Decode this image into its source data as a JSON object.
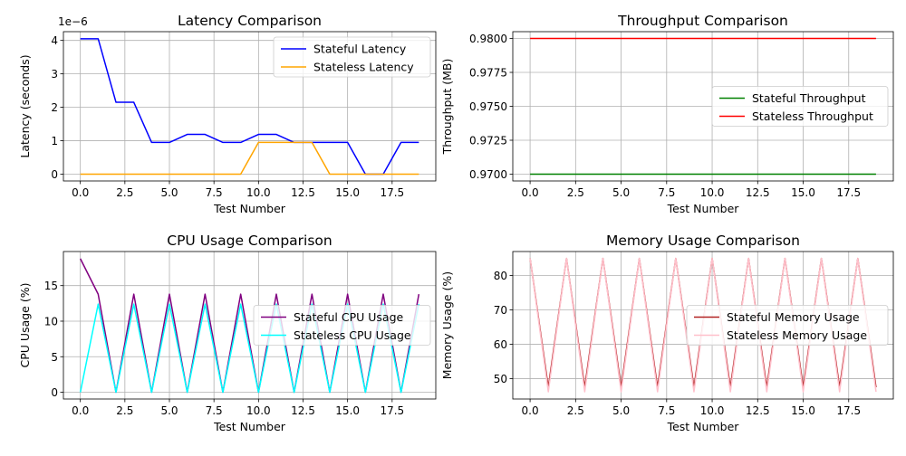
{
  "chart_data": [
    {
      "type": "line",
      "title": "Latency Comparison",
      "xlabel": "Test Number",
      "ylabel": "Latency (seconds)",
      "offset_text": "1e−6",
      "xlim": [
        -0.95,
        19.95
      ],
      "ylim": [
        -2.03e-07,
        4.262e-06
      ],
      "xticks": [
        0,
        2.5,
        5,
        7.5,
        10,
        12.5,
        15,
        17.5
      ],
      "xtick_labels": [
        "0.0",
        "2.5",
        "5.0",
        "7.5",
        "10.0",
        "12.5",
        "15.0",
        "17.5"
      ],
      "yticks": [
        0,
        1e-06,
        2e-06,
        3e-06,
        4e-06
      ],
      "ytick_labels": [
        "0",
        "1",
        "2",
        "3",
        "4"
      ],
      "grid": true,
      "legend": {
        "placement": "top-right"
      },
      "x": [
        0,
        1,
        2,
        3,
        4,
        5,
        6,
        7,
        8,
        9,
        10,
        11,
        12,
        13,
        14,
        15,
        16,
        17,
        18,
        19
      ],
      "series": [
        {
          "name": "Stateful Latency",
          "color": "#0000ff",
          "values": [
            4.05e-06,
            4.05e-06,
            2.15e-06,
            2.15e-06,
            9.5e-07,
            9.5e-07,
            1.19e-06,
            1.19e-06,
            9.5e-07,
            9.5e-07,
            1.19e-06,
            1.19e-06,
            9.5e-07,
            9.5e-07,
            9.5e-07,
            9.5e-07,
            0,
            0,
            9.5e-07,
            9.5e-07
          ]
        },
        {
          "name": "Stateless Latency",
          "color": "#ffa500",
          "values": [
            0,
            0,
            0,
            0,
            0,
            0,
            0,
            0,
            0,
            0,
            9.5e-07,
            9.5e-07,
            9.5e-07,
            9.5e-07,
            0,
            0,
            0,
            0,
            0,
            0
          ]
        }
      ]
    },
    {
      "type": "line",
      "title": "Throughput Comparison",
      "xlabel": "Test Number",
      "ylabel": "Throughput (MB)",
      "offset_text": "",
      "xlim": [
        -0.95,
        19.95
      ],
      "ylim": [
        0.9695,
        0.9805
      ],
      "xticks": [
        0,
        2.5,
        5,
        7.5,
        10,
        12.5,
        15,
        17.5
      ],
      "xtick_labels": [
        "0.0",
        "2.5",
        "5.0",
        "7.5",
        "10.0",
        "12.5",
        "15.0",
        "17.5"
      ],
      "yticks": [
        0.97,
        0.9725,
        0.975,
        0.9775,
        0.98
      ],
      "ytick_labels": [
        "0.9700",
        "0.9725",
        "0.9750",
        "0.9775",
        "0.9800"
      ],
      "grid": true,
      "legend": {
        "placement": "center-right"
      },
      "x": [
        0,
        1,
        2,
        3,
        4,
        5,
        6,
        7,
        8,
        9,
        10,
        11,
        12,
        13,
        14,
        15,
        16,
        17,
        18,
        19
      ],
      "series": [
        {
          "name": "Stateful Throughput",
          "color": "#008000",
          "values": [
            0.97,
            0.97,
            0.97,
            0.97,
            0.97,
            0.97,
            0.97,
            0.97,
            0.97,
            0.97,
            0.97,
            0.97,
            0.97,
            0.97,
            0.97,
            0.97,
            0.97,
            0.97,
            0.97,
            0.97
          ]
        },
        {
          "name": "Stateless Throughput",
          "color": "#ff0000",
          "values": [
            0.98,
            0.98,
            0.98,
            0.98,
            0.98,
            0.98,
            0.98,
            0.98,
            0.98,
            0.98,
            0.98,
            0.98,
            0.98,
            0.98,
            0.98,
            0.98,
            0.98,
            0.98,
            0.98,
            0.98
          ]
        }
      ]
    },
    {
      "type": "line",
      "title": "CPU Usage Comparison",
      "xlabel": "Test Number",
      "ylabel": "CPU Usage (%)",
      "offset_text": "",
      "xlim": [
        -0.95,
        19.95
      ],
      "ylim": [
        -0.95,
        19.8
      ],
      "xticks": [
        0,
        2.5,
        5,
        7.5,
        10,
        12.5,
        15,
        17.5
      ],
      "xtick_labels": [
        "0.0",
        "2.5",
        "5.0",
        "7.5",
        "10.0",
        "12.5",
        "15.0",
        "17.5"
      ],
      "yticks": [
        0,
        5,
        10,
        15
      ],
      "ytick_labels": [
        "0",
        "5",
        "10",
        "15"
      ],
      "grid": true,
      "legend": {
        "placement": "center-right"
      },
      "x": [
        0,
        1,
        2,
        3,
        4,
        5,
        6,
        7,
        8,
        9,
        10,
        11,
        12,
        13,
        14,
        15,
        16,
        17,
        18,
        19
      ],
      "series": [
        {
          "name": "Stateful CPU Usage",
          "color": "#800080",
          "values": [
            18.8,
            13.8,
            0,
            13.8,
            0,
            13.8,
            0,
            13.8,
            0,
            13.8,
            0,
            13.8,
            0,
            13.8,
            0,
            13.8,
            0,
            13.8,
            0,
            13.8
          ]
        },
        {
          "name": "Stateless CPU Usage",
          "color": "#00ffff",
          "values": [
            0,
            12.4,
            0,
            12.4,
            0,
            12.4,
            0,
            12.4,
            0,
            12.4,
            0,
            12.4,
            0,
            12.4,
            0,
            12.4,
            0,
            12.4,
            0,
            12.4
          ]
        }
      ]
    },
    {
      "type": "line",
      "title": "Memory Usage Comparison",
      "xlabel": "Test Number",
      "ylabel": "Memory Usage (%)",
      "offset_text": "",
      "xlim": [
        -0.95,
        19.95
      ],
      "ylim": [
        44.1,
        87.0
      ],
      "xticks": [
        0,
        2.5,
        5,
        7.5,
        10,
        12.5,
        15,
        17.5
      ],
      "xtick_labels": [
        "0.0",
        "2.5",
        "5.0",
        "7.5",
        "10.0",
        "12.5",
        "15.0",
        "17.5"
      ],
      "yticks": [
        50,
        60,
        70,
        80
      ],
      "ytick_labels": [
        "50",
        "60",
        "70",
        "80"
      ],
      "grid": true,
      "legend": {
        "placement": "center-right"
      },
      "x": [
        0,
        1,
        2,
        3,
        4,
        5,
        6,
        7,
        8,
        9,
        10,
        11,
        12,
        13,
        14,
        15,
        16,
        17,
        18,
        19
      ],
      "series": [
        {
          "name": "Stateful Memory Usage",
          "color": "#b22222",
          "values": [
            85,
            47.5,
            85,
            47.5,
            85,
            47.5,
            85,
            47.5,
            85,
            47.5,
            85,
            47.5,
            85,
            47.5,
            85,
            47.5,
            85,
            47.5,
            85,
            47.5
          ]
        },
        {
          "name": "Stateless Memory Usage",
          "color": "#ffc0cb",
          "values": [
            85,
            46.2,
            85,
            46.2,
            85,
            46.2,
            85,
            46.2,
            85,
            46.2,
            85,
            46.2,
            85,
            46.2,
            85,
            46.2,
            85,
            46.2,
            85,
            46.2
          ]
        }
      ]
    }
  ]
}
